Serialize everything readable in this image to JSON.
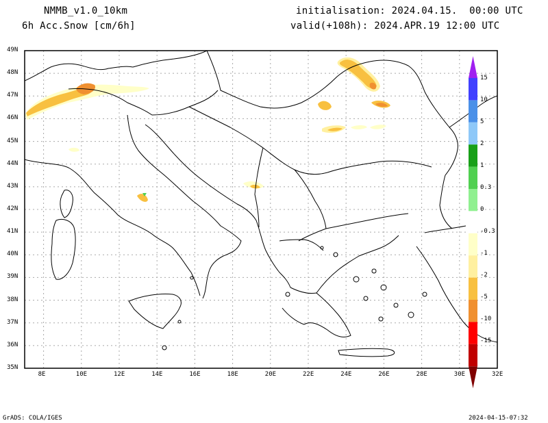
{
  "header": {
    "model": "NMMB_v1.0_10km",
    "field": "6h Acc.Snow [cm/6h]",
    "init": "initialisation: 2024.04.15.  00:00 UTC",
    "valid": "valid(+108h): 2024.APR.19 12:00 UTC"
  },
  "axes": {
    "lat_labels": [
      "49N",
      "48N",
      "47N",
      "46N",
      "45N",
      "44N",
      "43N",
      "42N",
      "41N",
      "40N",
      "39N",
      "38N",
      "37N",
      "36N",
      "35N"
    ],
    "lon_labels": [
      "8E",
      "10E",
      "12E",
      "14E",
      "16E",
      "18E",
      "20E",
      "22E",
      "24E",
      "26E",
      "28E",
      "30E",
      "32E"
    ]
  },
  "legend": {
    "labels": [
      "15",
      "10",
      "5",
      "2",
      "1",
      "0.3",
      "0",
      "-0.3",
      "-1",
      "-2",
      "-5",
      "-10",
      "-15"
    ],
    "colors": [
      "#a020f0",
      "#4040ff",
      "#4a90e8",
      "#8ec8f8",
      "#18a018",
      "#50d050",
      "#90f090",
      "#ffffff",
      "#ffffc8",
      "#fff0a0",
      "#f8c040",
      "#f09030",
      "#ff0000",
      "#c00000",
      "#800000"
    ]
  },
  "footer": {
    "left": "GrADS: COLA/IGES",
    "right": "2024-04-15-07:32"
  }
}
